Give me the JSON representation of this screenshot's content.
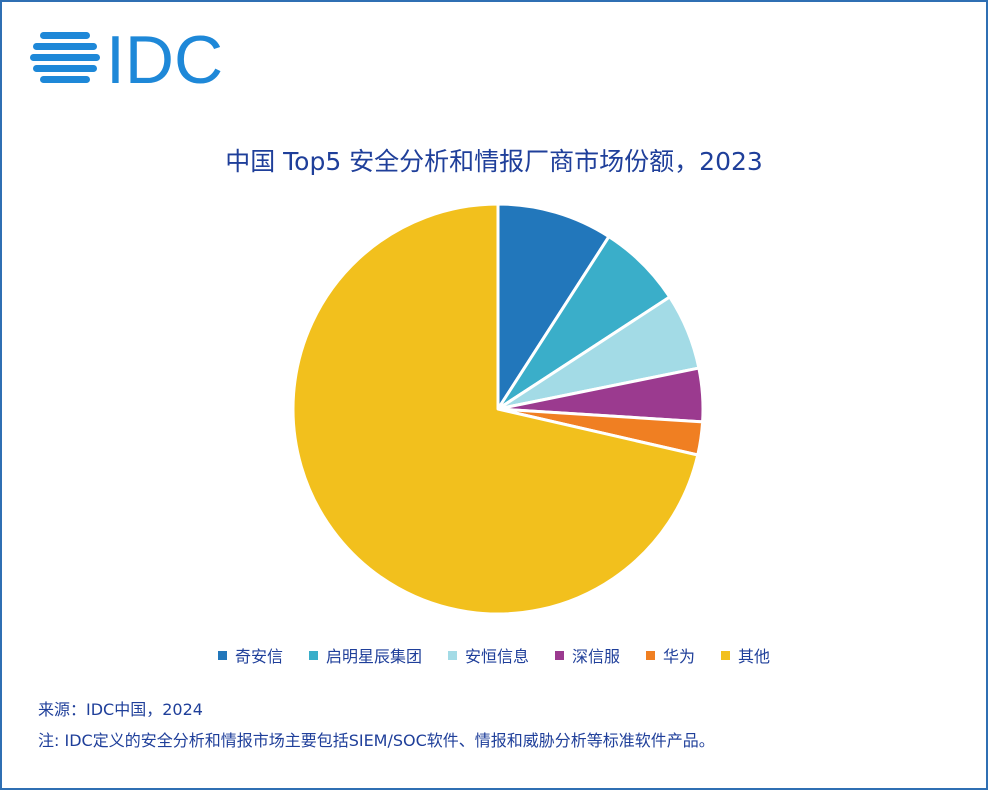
{
  "logo_text": "IDC",
  "colors": {
    "brand": "#1e88d8",
    "text": "#1f3f9a",
    "border": "#2f6fb3"
  },
  "chart_data": {
    "type": "pie",
    "title": "中国 Top5 安全分析和情报厂商市场份额，2023",
    "categories": [
      "奇安信",
      "启明星辰集团",
      "安恒信息",
      "深信服",
      "华为",
      "其他"
    ],
    "values": [
      9.1,
      6.7,
      6.0,
      4.2,
      2.6,
      71.4
    ],
    "colors": [
      "#2277bb",
      "#3aaec9",
      "#a3dbe6",
      "#9b3a8f",
      "#f07f22",
      "#f2c01d"
    ],
    "legend": "bottom"
  },
  "footer": {
    "source": "来源：IDC中国，2024",
    "note": "注: IDC定义的安全分析和情报市场主要包括SIEM/SOC软件、情报和威胁分析等标准软件产品。"
  }
}
